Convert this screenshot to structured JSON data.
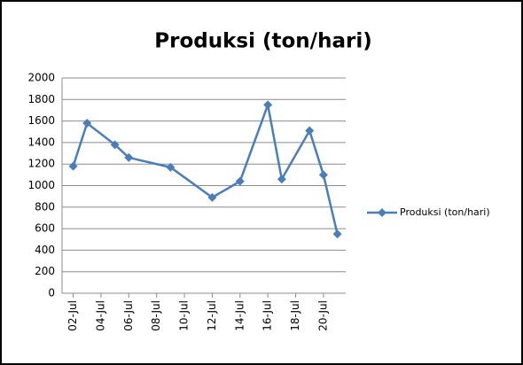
{
  "chart_data": {
    "type": "line",
    "title": "Produksi (ton/hari)",
    "x": [
      "02-Jul",
      "03-Jul",
      "05-Jul",
      "06-Jul",
      "09-Jul",
      "12-Jul",
      "14-Jul",
      "16-Jul",
      "17-Jul",
      "19-Jul",
      "20-Jul",
      "21-Jul"
    ],
    "xticks": [
      "02-Jul",
      "04-Jul",
      "06-Jul",
      "08-Jul",
      "10-Jul",
      "12-Jul",
      "14-Jul",
      "16-Jul",
      "18-Jul",
      "20-Jul"
    ],
    "series": [
      {
        "name": "Produksi (ton/hari)",
        "color": "#4a7ebb",
        "values": [
          1180,
          1580,
          1380,
          1260,
          1170,
          890,
          1040,
          1750,
          1060,
          1510,
          1100,
          550
        ]
      }
    ],
    "ylim": [
      0,
      2000
    ],
    "yticks": [
      0,
      200,
      400,
      600,
      800,
      1000,
      1200,
      1400,
      1600,
      1800,
      2000
    ],
    "grid": true,
    "legend": "right"
  }
}
